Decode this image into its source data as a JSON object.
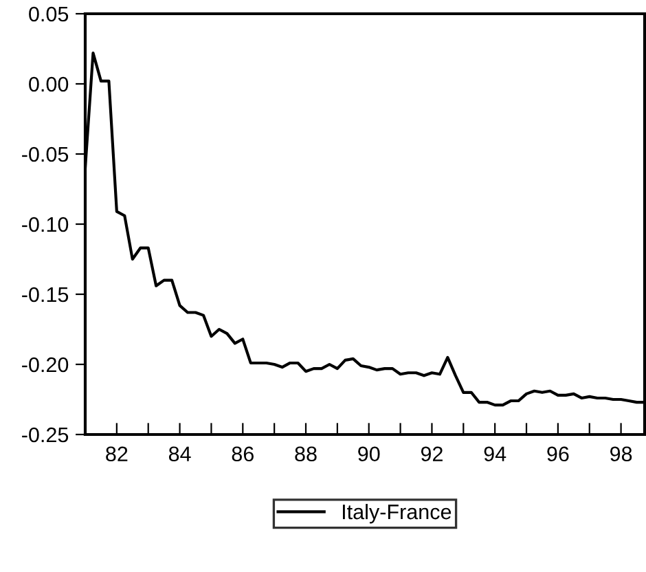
{
  "chart_data": {
    "type": "line",
    "x": [
      81.0,
      81.25,
      81.5,
      81.75,
      82.0,
      82.25,
      82.5,
      82.75,
      83.0,
      83.25,
      83.5,
      83.75,
      84.0,
      84.25,
      84.5,
      84.75,
      85.0,
      85.25,
      85.5,
      85.75,
      86.0,
      86.25,
      86.5,
      86.75,
      87.0,
      87.25,
      87.5,
      87.75,
      88.0,
      88.25,
      88.5,
      88.75,
      89.0,
      89.25,
      89.5,
      89.75,
      90.0,
      90.25,
      90.5,
      90.75,
      91.0,
      91.25,
      91.5,
      91.75,
      92.0,
      92.25,
      92.5,
      92.75,
      93.0,
      93.25,
      93.5,
      93.75,
      94.0,
      94.25,
      94.5,
      94.75,
      95.0,
      95.25,
      95.5,
      95.75,
      96.0,
      96.25,
      96.5,
      96.75,
      97.0,
      97.25,
      97.5,
      97.75,
      98.0,
      98.25,
      98.5,
      98.75
    ],
    "series": [
      {
        "name": "Italy-France",
        "color": "#000000",
        "values": [
          -0.06,
          0.022,
          0.002,
          0.002,
          -0.091,
          -0.094,
          -0.125,
          -0.117,
          -0.117,
          -0.144,
          -0.14,
          -0.14,
          -0.158,
          -0.163,
          -0.163,
          -0.165,
          -0.18,
          -0.175,
          -0.178,
          -0.185,
          -0.182,
          -0.199,
          -0.199,
          -0.199,
          -0.2,
          -0.202,
          -0.199,
          -0.199,
          -0.205,
          -0.203,
          -0.203,
          -0.2,
          -0.203,
          -0.197,
          -0.196,
          -0.201,
          -0.202,
          -0.204,
          -0.203,
          -0.203,
          -0.207,
          -0.206,
          -0.206,
          -0.208,
          -0.206,
          -0.207,
          -0.195,
          -0.208,
          -0.22,
          -0.22,
          -0.227,
          -0.227,
          -0.229,
          -0.229,
          -0.226,
          -0.226,
          -0.221,
          -0.219,
          -0.22,
          -0.219,
          -0.222,
          -0.222,
          -0.221,
          -0.224,
          -0.223,
          -0.224,
          -0.224,
          -0.225,
          -0.225,
          -0.226,
          -0.227,
          -0.227
        ]
      }
    ],
    "xlim": [
      81.0,
      98.75
    ],
    "xticks": [
      {
        "value": 81,
        "label": null
      },
      {
        "value": 82,
        "label": "82"
      },
      {
        "value": 83,
        "label": null
      },
      {
        "value": 84,
        "label": "84"
      },
      {
        "value": 85,
        "label": null
      },
      {
        "value": 86,
        "label": "86"
      },
      {
        "value": 87,
        "label": null
      },
      {
        "value": 88,
        "label": "88"
      },
      {
        "value": 89,
        "label": null
      },
      {
        "value": 90,
        "label": "90"
      },
      {
        "value": 91,
        "label": null
      },
      {
        "value": 92,
        "label": "92"
      },
      {
        "value": 93,
        "label": null
      },
      {
        "value": 94,
        "label": "94"
      },
      {
        "value": 95,
        "label": null
      },
      {
        "value": 96,
        "label": "96"
      },
      {
        "value": 97,
        "label": null
      },
      {
        "value": 98,
        "label": "98"
      }
    ],
    "ylim": [
      -0.25,
      0.05
    ],
    "yticks": [
      {
        "value": 0.05,
        "label": "0.05"
      },
      {
        "value": 0.0,
        "label": "0.00"
      },
      {
        "value": -0.05,
        "label": "-0.05"
      },
      {
        "value": -0.1,
        "label": "-0.10"
      },
      {
        "value": -0.15,
        "label": "-0.15"
      },
      {
        "value": -0.2,
        "label": "-0.20"
      },
      {
        "value": -0.25,
        "label": "-0.25"
      }
    ],
    "grid": false,
    "legend": "bottom",
    "marker": "none",
    "line_style": "solid"
  }
}
